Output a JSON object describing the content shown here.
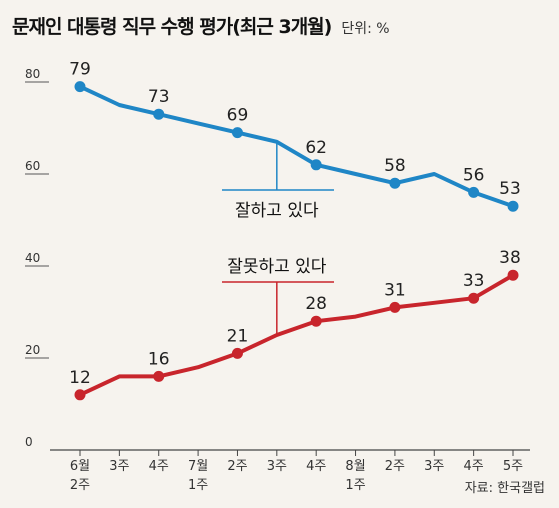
{
  "header": {
    "title": "문재인 대통령 직무 수행 평가(최근 3개월)",
    "unit": "단위: %"
  },
  "source": "자료: 한국갤럽",
  "colors": {
    "approve": "#1f86c6",
    "disapprove": "#c8252c",
    "background": "#f6f3ee",
    "axis": "#444444"
  },
  "chart_data": {
    "type": "line",
    "title": "문재인 대통령 직무 수행 평가(최근 3개월)",
    "unit": "단위: %",
    "ylim": [
      0,
      80
    ],
    "yticks": [
      0,
      20,
      40,
      60,
      80
    ],
    "grid": false,
    "categories": [
      "6월 2주",
      "3주",
      "4주",
      "7월 1주",
      "2주",
      "3주",
      "4주",
      "8월 1주",
      "2주",
      "3주",
      "4주",
      "5주"
    ],
    "x_tick_labels": [
      [
        "6월",
        "2주"
      ],
      [
        "3주"
      ],
      [
        "4주"
      ],
      [
        "7월",
        "1주"
      ],
      [
        "2주"
      ],
      [
        "3주"
      ],
      [
        "4주"
      ],
      [
        "8월",
        "1주"
      ],
      [
        "2주"
      ],
      [
        "3주"
      ],
      [
        "4주"
      ],
      [
        "5주"
      ]
    ],
    "series": [
      {
        "name": "잘하고 있다",
        "color": "#1f86c6",
        "values": [
          79,
          75,
          73,
          71,
          69,
          67,
          62,
          60,
          58,
          60,
          56,
          53
        ],
        "labels": [
          "79",
          "",
          "73",
          "",
          "69",
          "",
          "62",
          "",
          "58",
          "",
          "56",
          "53"
        ],
        "markers": [
          0,
          2,
          4,
          6,
          8,
          10,
          11
        ]
      },
      {
        "name": "잘못하고 있다",
        "color": "#c8252c",
        "values": [
          12,
          16,
          16,
          18,
          21,
          25,
          28,
          29,
          31,
          32,
          33,
          38
        ],
        "labels": [
          "12",
          "",
          "16",
          "",
          "21",
          "",
          "28",
          "",
          "31",
          "",
          "33",
          "38"
        ],
        "markers": [
          0,
          2,
          4,
          6,
          8,
          10,
          11
        ]
      }
    ]
  }
}
